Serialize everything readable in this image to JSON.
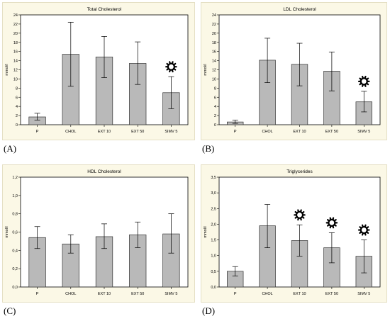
{
  "colors": {
    "panel_bg": "#fbf8e6",
    "plot_bg": "#ffffff",
    "bar_fill": "#b9b9b9",
    "bar_stroke": "#333333",
    "marker": "#000000"
  },
  "chart_data": [
    {
      "type": "bar",
      "panel_label": "(A)",
      "title": "Total Cholesterol",
      "xlabel": "",
      "ylabel": "mmol/l",
      "categories": [
        "P",
        "CHOL",
        "EXT 10",
        "EXT 50",
        "SIMV 5"
      ],
      "values": [
        1.7,
        15.4,
        14.8,
        13.4,
        7.0
      ],
      "err_low": [
        1.0,
        8.4,
        10.3,
        8.8,
        3.5
      ],
      "err_high": [
        2.5,
        22.4,
        19.3,
        18.1,
        10.5
      ],
      "significant": [
        false,
        false,
        false,
        false,
        true
      ],
      "ylim": [
        0,
        24
      ],
      "yticks": [
        0,
        2,
        4,
        6,
        8,
        10,
        12,
        14,
        16,
        18,
        20,
        22,
        24
      ],
      "ytick_labels": [
        "0",
        "2",
        "4",
        "6",
        "8",
        "10",
        "12",
        "14",
        "16",
        "18",
        "20",
        "22",
        "24"
      ],
      "grid": false
    },
    {
      "type": "bar",
      "panel_label": "(B)",
      "title": "LDL Cholesterol",
      "xlabel": "",
      "ylabel": "mmol/l",
      "categories": [
        "P",
        "CHOL",
        "EXT 10",
        "EXT 50",
        "SIMV 5"
      ],
      "values": [
        0.6,
        14.1,
        13.2,
        11.7,
        5.0
      ],
      "err_low": [
        0.3,
        9.2,
        8.5,
        7.4,
        2.8
      ],
      "err_high": [
        1.0,
        18.9,
        17.8,
        15.9,
        7.3
      ],
      "significant": [
        false,
        false,
        false,
        false,
        true
      ],
      "ylim": [
        0,
        24
      ],
      "yticks": [
        0,
        2,
        4,
        6,
        8,
        10,
        12,
        14,
        16,
        18,
        20,
        22,
        24
      ],
      "ytick_labels": [
        "0",
        "2",
        "4",
        "6",
        "8",
        "10",
        "12",
        "14",
        "16",
        "18",
        "20",
        "22",
        "24"
      ],
      "grid": false
    },
    {
      "type": "bar",
      "panel_label": "(C)",
      "title": "HDL Cholesterol",
      "xlabel": "",
      "ylabel": "mmol/l",
      "categories": [
        "P",
        "CHOL",
        "EXT 10",
        "EXT 50",
        "SIMV 5"
      ],
      "values": [
        0.54,
        0.47,
        0.55,
        0.57,
        0.58
      ],
      "err_low": [
        0.42,
        0.37,
        0.42,
        0.43,
        0.37
      ],
      "err_high": [
        0.66,
        0.57,
        0.69,
        0.71,
        0.8
      ],
      "significant": [
        false,
        false,
        false,
        false,
        false
      ],
      "ylim": [
        0,
        1.2
      ],
      "yticks": [
        0,
        0.2,
        0.4,
        0.6,
        0.8,
        1.0,
        1.2
      ],
      "ytick_labels": [
        "0,0",
        "0,2",
        "0,4",
        "0,6",
        "0,8",
        "1,0",
        "1,2"
      ],
      "grid": false
    },
    {
      "type": "bar",
      "panel_label": "(D)",
      "title": "Triglycerides",
      "xlabel": "",
      "ylabel": "mmol/l",
      "categories": [
        "P",
        "CHOL",
        "EXT 10",
        "EXT 50",
        "SIMV 5"
      ],
      "values": [
        0.5,
        1.95,
        1.48,
        1.25,
        0.98
      ],
      "err_low": [
        0.35,
        1.25,
        0.98,
        0.77,
        0.45
      ],
      "err_high": [
        0.65,
        2.63,
        1.98,
        1.73,
        1.5
      ],
      "significant": [
        false,
        false,
        true,
        true,
        true
      ],
      "ylim": [
        0,
        3.5
      ],
      "yticks": [
        0,
        0.5,
        1.0,
        1.5,
        2.0,
        2.5,
        3.0,
        3.5
      ],
      "ytick_labels": [
        "0,0",
        "0,5",
        "1,0",
        "1,5",
        "2,0",
        "2,5",
        "3,0",
        "3,5"
      ],
      "grid": false
    }
  ]
}
